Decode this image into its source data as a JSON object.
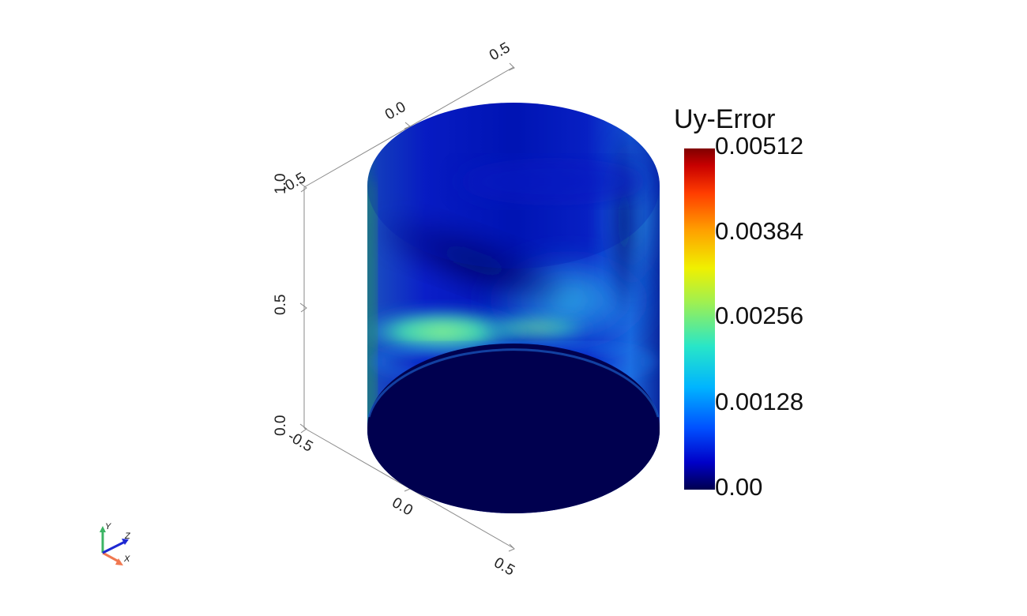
{
  "scene": {
    "field_name": "Uy-Error",
    "colormap": [
      "#00004f",
      "#0000c8",
      "#0050ff",
      "#00b4ff",
      "#28e6c8",
      "#a0f050",
      "#f0f000",
      "#ffa000",
      "#ff3c00",
      "#c80000",
      "#800000"
    ]
  },
  "legend": {
    "title": "Uy-Error",
    "ticks": [
      "0.00512",
      "0.00384",
      "0.00256",
      "0.00128",
      "0.00"
    ],
    "min": 0.0,
    "max": 0.00512
  },
  "axes": {
    "vertical_ticks": [
      "1.0",
      "0.5",
      "0.0"
    ],
    "top_edge_ticks": [
      "-0.5",
      "0.0",
      "0.5"
    ],
    "bottom_edge_ticks": [
      "-0.5",
      "0.0",
      "0.5"
    ]
  },
  "orientation_triad": {
    "x_label": "X",
    "y_label": "Y",
    "z_label": "Z",
    "x_color": "#f07850",
    "y_color": "#3cb464",
    "z_color": "#1e28d2"
  }
}
